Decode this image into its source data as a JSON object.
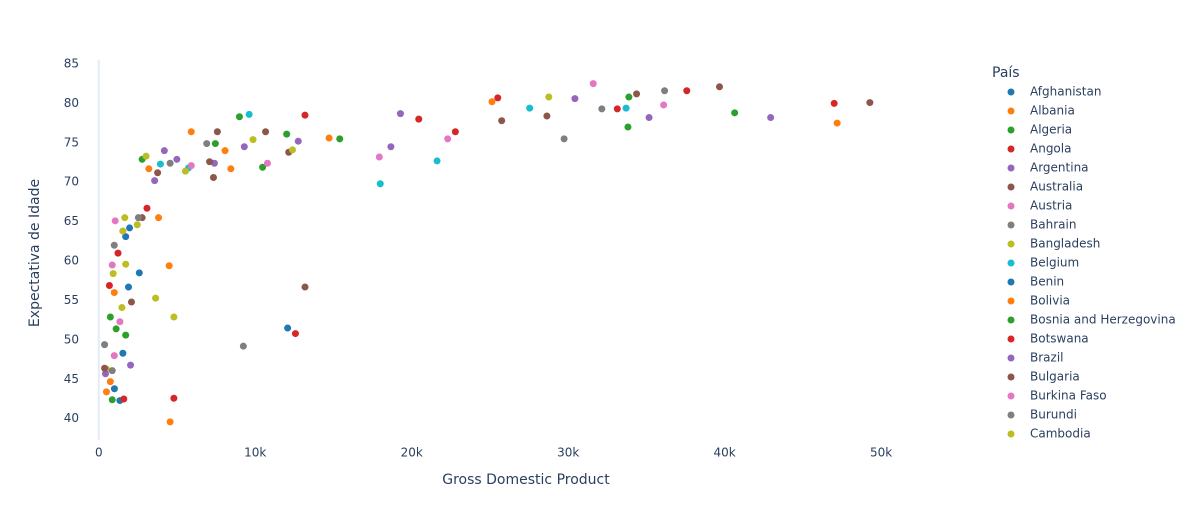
{
  "chart_data": {
    "type": "scatter",
    "xlabel": "Gross Domestic Product",
    "ylabel": "Expectativa de Idade",
    "legend_title": "País",
    "xlim": [
      -1200,
      56000
    ],
    "ylim": [
      37.3,
      85.5
    ],
    "xticks": [
      {
        "value": 0,
        "label": "0"
      },
      {
        "value": 10000,
        "label": "10k"
      },
      {
        "value": 20000,
        "label": "20k"
      },
      {
        "value": 30000,
        "label": "30k"
      },
      {
        "value": 40000,
        "label": "40k"
      },
      {
        "value": 50000,
        "label": "50k"
      }
    ],
    "yticks": [
      40,
      45,
      50,
      55,
      60,
      65,
      70,
      75,
      80,
      85
    ],
    "legend": "right",
    "series": [
      {
        "name": "Afghanistan",
        "color": "#1f77b4",
        "x": [
          1350,
          1000,
          1540,
          1900,
          2590
        ],
        "y": [
          42.3,
          43.8,
          48.3,
          56.7,
          58.5
        ]
      },
      {
        "name": "Albania",
        "color": "#ff7f0e",
        "x": [
          3820,
          3200,
          5910,
          8070,
          8440,
          14720
        ],
        "y": [
          65.5,
          71.7,
          76.4,
          74,
          71.7,
          75.6
        ]
      },
      {
        "name": "Algeria",
        "color": "#2ca02c",
        "x": [
          2770,
          7450,
          10470,
          12010,
          15400,
          8990
        ],
        "y": [
          72.9,
          74.9,
          71.9,
          76.1,
          75.5,
          78.3
        ]
      },
      {
        "name": "Angola",
        "color": "#d62728",
        "x": [
          680,
          1230,
          1600,
          3080,
          4800
        ],
        "y": [
          56.9,
          61,
          42.5,
          66.7,
          42.6
        ]
      },
      {
        "name": "Argentina",
        "color": "#9467bd",
        "x": [
          3570,
          4190,
          4990,
          7390,
          9300,
          12750
        ],
        "y": [
          70.2,
          74,
          72.9,
          72.4,
          74.5,
          75.2
        ]
      },
      {
        "name": "Australia",
        "color": "#8c564b",
        "x": [
          10660,
          25750,
          28640,
          34370,
          39670,
          49280
        ],
        "y": [
          76.4,
          77.8,
          78.4,
          81.2,
          82.1,
          80.1
        ]
      },
      {
        "name": "Austria",
        "color": "#e377c2",
        "x": [
          10780,
          17930,
          22300,
          31600,
          36100
        ],
        "y": [
          72.4,
          73.2,
          75.5,
          82.5,
          79.8
        ]
      },
      {
        "name": "Bahrain",
        "color": "#7f7f7f",
        "x": [
          4560,
          6900,
          29740,
          32150,
          36160
        ],
        "y": [
          72.4,
          74.9,
          75.5,
          79.3,
          81.6
        ]
      },
      {
        "name": "Bangladesh",
        "color": "#bcbd22",
        "x": [
          490,
          920,
          1720,
          1480,
          3630,
          4800
        ],
        "y": [
          46.3,
          58.4,
          59.6,
          54.1,
          55.3,
          52.9
        ]
      },
      {
        "name": "Belgium",
        "color": "#17becf",
        "x": [
          9610,
          17990,
          21620,
          27540,
          33700,
          3940,
          5730
        ],
        "y": [
          78.6,
          69.8,
          72.7,
          79.4,
          79.4,
          72.3,
          71.8
        ]
      },
      {
        "name": "Benin",
        "color": "#1f77b4",
        "x": [
          1720,
          1970,
          12070
        ],
        "y": [
          63.1,
          64.2,
          51.5
        ]
      },
      {
        "name": "Bolivia",
        "color": "#ff7f0e",
        "x": [
          490,
          740,
          990,
          4560,
          4500,
          25130,
          47190
        ],
        "y": [
          43.4,
          44.7,
          56,
          39.6,
          59.4,
          80.2,
          77.5
        ]
      },
      {
        "name": "Bosnia and Herzegovina",
        "color": "#2ca02c",
        "x": [
          860,
          740,
          1110,
          1720,
          33820,
          33880,
          40640
        ],
        "y": [
          42.4,
          52.9,
          51.4,
          50.6,
          77,
          80.8,
          78.8
        ]
      },
      {
        "name": "Botswana",
        "color": "#d62728",
        "x": [
          12570,
          13180,
          20450,
          22790,
          25500,
          33140,
          37580,
          47000
        ],
        "y": [
          50.8,
          78.5,
          78,
          76.4,
          80.7,
          79.3,
          81.6,
          80
        ]
      },
      {
        "name": "Brazil",
        "color": "#9467bd",
        "x": [
          430,
          2030,
          18670,
          19280,
          30430,
          35170,
          42940
        ],
        "y": [
          45.7,
          46.8,
          74.5,
          78.7,
          80.6,
          78.2,
          78.2
        ]
      },
      {
        "name": "Bulgaria",
        "color": "#8c564b",
        "x": [
          370,
          2090,
          2770,
          3760,
          7080,
          7580,
          7330,
          12140,
          13180
        ],
        "y": [
          46.4,
          54.8,
          65.5,
          71.2,
          72.6,
          76.4,
          70.6,
          73.8,
          56.7
        ]
      },
      {
        "name": "Burkina Faso",
        "color": "#e377c2",
        "x": [
          860,
          1050,
          1350,
          990,
          1540,
          5910
        ],
        "y": [
          59.5,
          65.1,
          52.3,
          48,
          63.8,
          72.1
        ]
      },
      {
        "name": "Burundi",
        "color": "#7f7f7f",
        "x": [
          370,
          990,
          860,
          2530,
          9240
        ],
        "y": [
          49.4,
          62,
          46.1,
          65.5,
          49.2
        ]
      },
      {
        "name": "Cambodia",
        "color": "#bcbd22",
        "x": [
          1540,
          1660,
          2460,
          3020,
          5540,
          9860,
          12380,
          28760
        ],
        "y": [
          63.8,
          65.5,
          64.6,
          73.3,
          71.4,
          75.4,
          74.1,
          80.8
        ]
      }
    ]
  }
}
